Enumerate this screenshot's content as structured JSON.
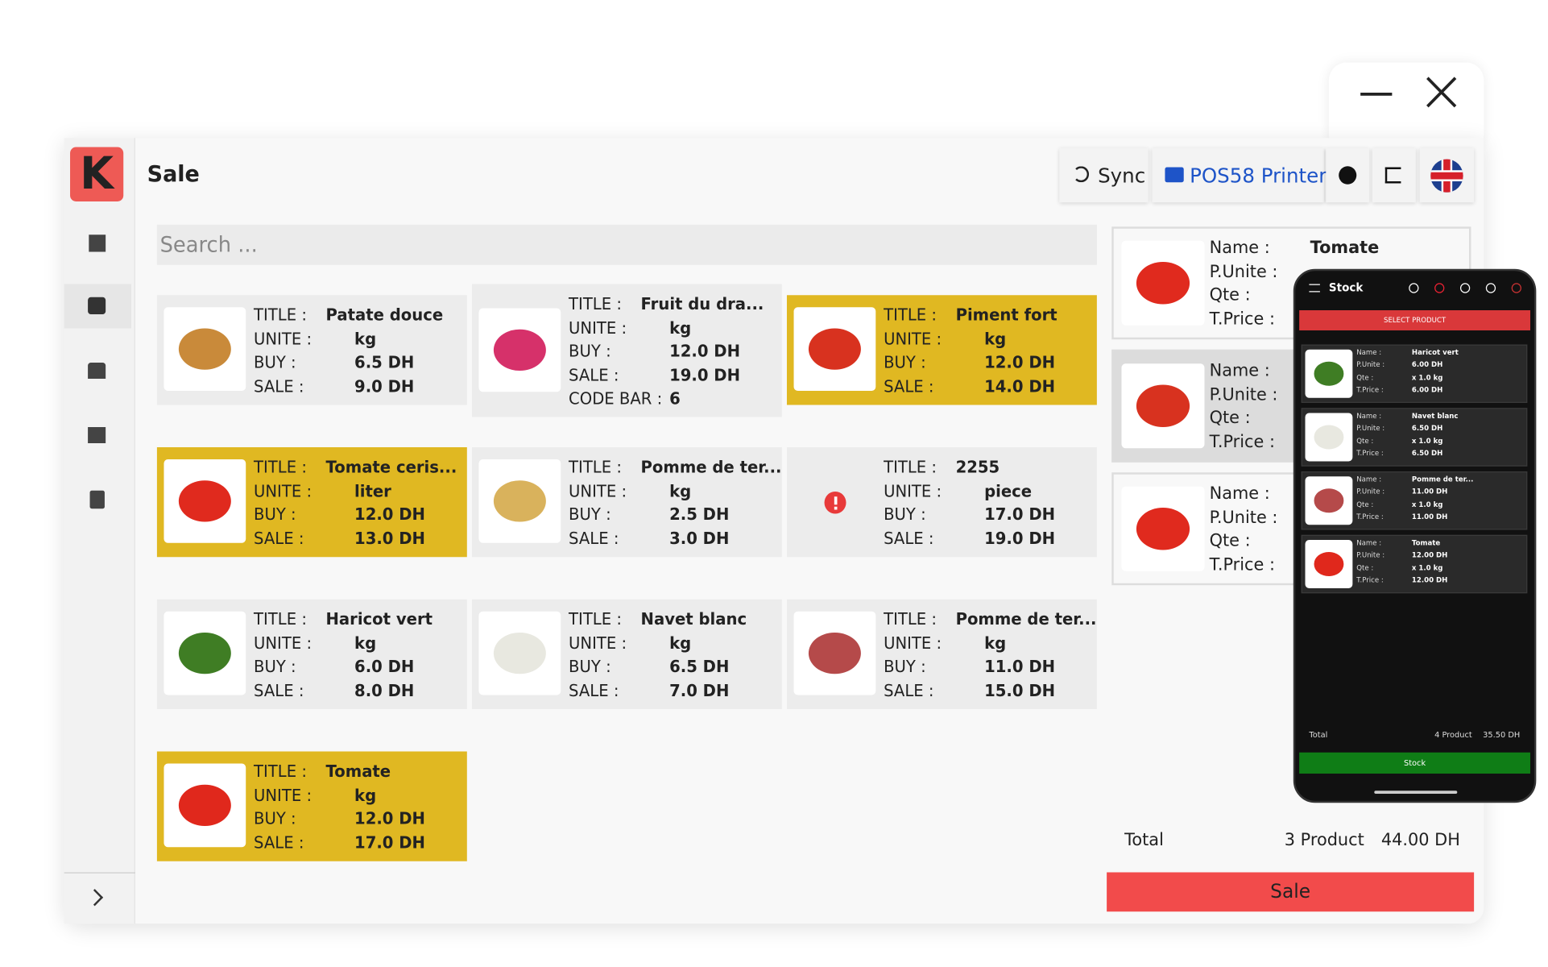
{
  "window": {
    "title": "Sale",
    "logo": "K"
  },
  "toolbar": {
    "sync": "Sync",
    "printer": "POS58 Printer"
  },
  "search": {
    "placeholder": "Search ..."
  },
  "product_labels": {
    "title": "TITLE :",
    "unite": "UNITE :",
    "buy": "BUY :",
    "sale": "SALE :",
    "code_bar": "CODE BAR :"
  },
  "products": [
    {
      "title": "Patate douce",
      "unite": "kg",
      "buy": "6.5 DH",
      "sale": "9.0 DH",
      "selected": false,
      "image": true
    },
    {
      "title": "Fruit du dra...",
      "unite": "kg",
      "buy": "12.0 DH",
      "sale": "19.0 DH",
      "code_bar": "6",
      "selected": false,
      "image": true
    },
    {
      "title": "Piment fort",
      "unite": "kg",
      "buy": "12.0 DH",
      "sale": "14.0 DH",
      "selected": true,
      "image": true
    },
    {
      "title": "Tomate ceris...",
      "unite": "liter",
      "buy": "12.0 DH",
      "sale": "13.0 DH",
      "selected": true,
      "image": true
    },
    {
      "title": "Pomme de ter...",
      "unite": "kg",
      "buy": "2.5 DH",
      "sale": "3.0 DH",
      "selected": false,
      "image": true
    },
    {
      "title": "2255",
      "unite": "piece",
      "buy": "17.0 DH",
      "sale": "19.0 DH",
      "selected": false,
      "image": false
    },
    {
      "title": "Haricot vert",
      "unite": "kg",
      "buy": "6.0 DH",
      "sale": "8.0 DH",
      "selected": false,
      "image": true
    },
    {
      "title": "Navet blanc",
      "unite": "kg",
      "buy": "6.5 DH",
      "sale": "7.0 DH",
      "selected": false,
      "image": true
    },
    {
      "title": "Pomme de ter...",
      "unite": "kg",
      "buy": "11.0 DH",
      "sale": "15.0 DH",
      "selected": false,
      "image": true
    },
    {
      "title": "Tomate",
      "unite": "kg",
      "buy": "12.0 DH",
      "sale": "17.0 DH",
      "selected": true,
      "image": true
    }
  ],
  "cart_labels": {
    "name": "Name :",
    "unit_price": "P.Unite :",
    "qty": "Qte :",
    "total_price": "T.Price :"
  },
  "cart": [
    {
      "name": "Tomate",
      "selected": false
    },
    {
      "selected": true
    },
    {
      "selected": false
    }
  ],
  "cart_total": {
    "label": "Total",
    "count": "3 Product",
    "amount": "44.00 DH"
  },
  "sale_button": "Sale",
  "phone": {
    "title": "Stock",
    "select_button": "SELECT PRODUCT",
    "items": [
      {
        "name": "Haricot vert",
        "unit_price": "6.00 DH",
        "qty": "x 1.0 kg",
        "total_price": "6.00 DH"
      },
      {
        "name": "Navet blanc",
        "unit_price": "6.50 DH",
        "qty": "x 1.0 kg",
        "total_price": "6.50 DH"
      },
      {
        "name": "Pomme de ter...",
        "unit_price": "11.00 DH",
        "qty": "x 1.0 kg",
        "total_price": "11.00 DH"
      },
      {
        "name": "Tomate",
        "unit_price": "12.00 DH",
        "qty": "x 1.0 kg",
        "total_price": "12.00 DH"
      }
    ],
    "total": {
      "label": "Total",
      "count": "4 Product",
      "amount": "35.50 DH"
    },
    "stock_button": "Stock"
  }
}
